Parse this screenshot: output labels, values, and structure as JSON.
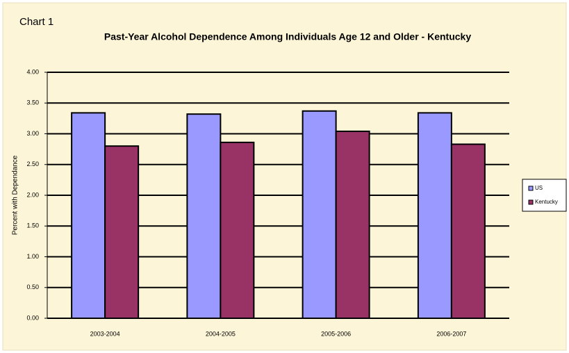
{
  "chart_data": {
    "type": "bar",
    "chart_label": "Chart 1",
    "title": "Past-Year Alcohol Dependence Among Individuals Age 12 and Older - Kentucky",
    "y_label": "Percent with Dependance",
    "categories": [
      "2003-2004",
      "2004-2005",
      "2005-2006",
      "2006-2007"
    ],
    "series": [
      {
        "name": "US",
        "color": "#9999ff",
        "values": [
          3.34,
          3.32,
          3.37,
          3.34
        ]
      },
      {
        "name": "Kentucky",
        "color": "#993366",
        "values": [
          2.8,
          2.86,
          3.04,
          2.83
        ]
      }
    ],
    "ylim": [
      0,
      4
    ],
    "yticks": [
      {
        "value": 0,
        "label": "0.00"
      },
      {
        "value": 0.5,
        "label": "0.50"
      },
      {
        "value": 1,
        "label": "1.00"
      },
      {
        "value": 1.5,
        "label": "1.50"
      },
      {
        "value": 2,
        "label": "2.00"
      },
      {
        "value": 2.5,
        "label": "2.50"
      },
      {
        "value": 3,
        "label": "3.00"
      },
      {
        "value": 3.5,
        "label": "3.50"
      },
      {
        "value": 4,
        "label": "4.00"
      }
    ],
    "grid": true,
    "legend": "right"
  }
}
